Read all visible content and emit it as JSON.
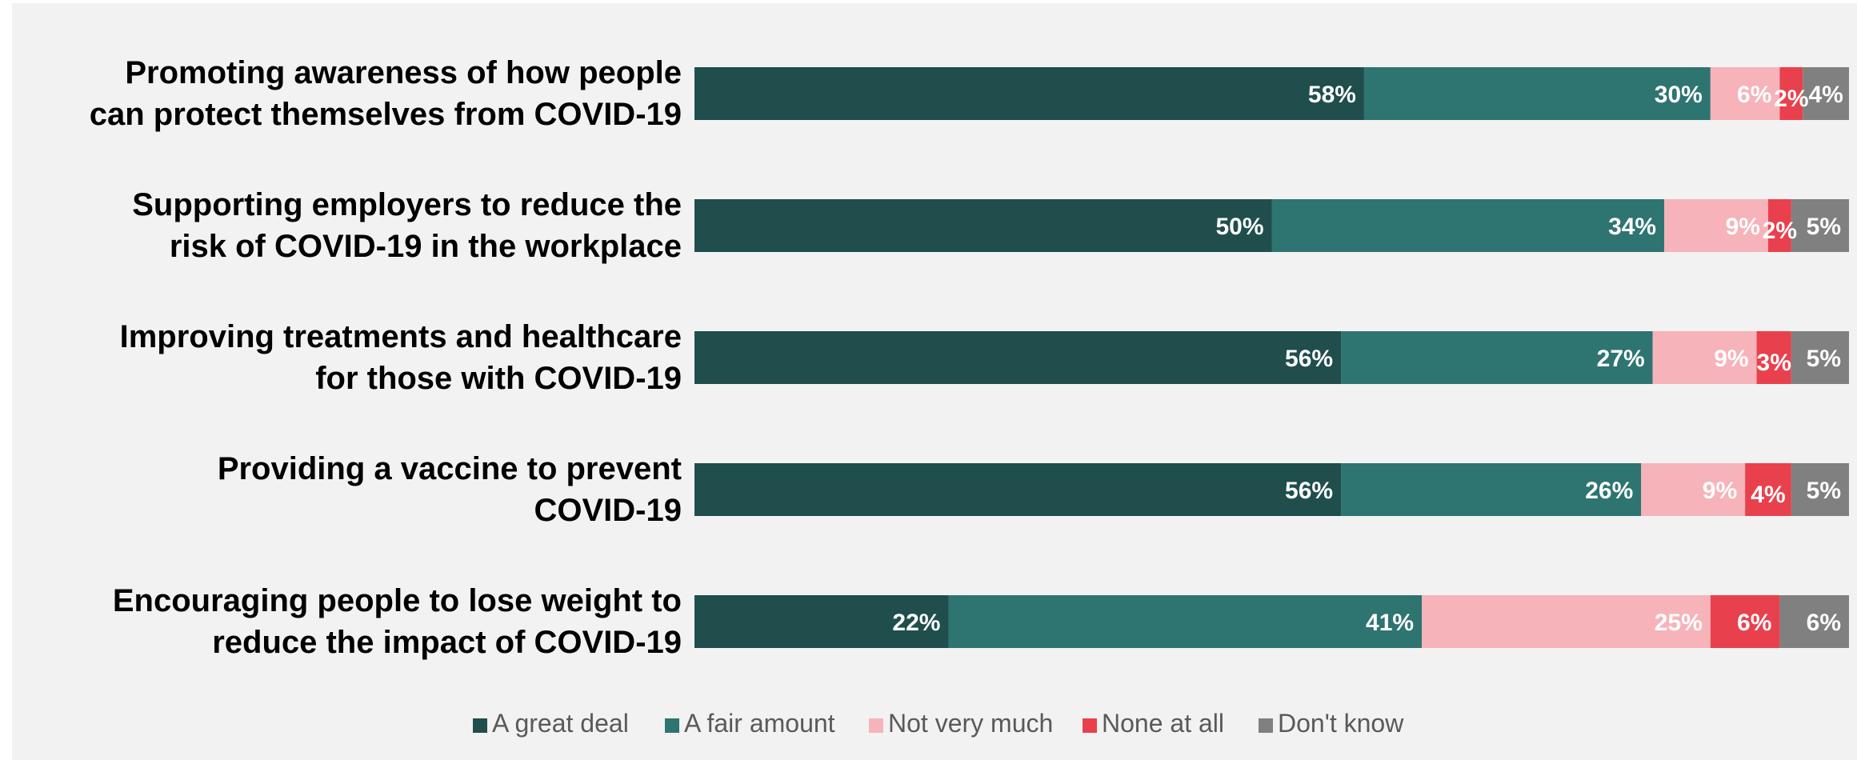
{
  "chart_data": {
    "type": "bar",
    "orientation": "horizontal",
    "stacked": true,
    "categories": [
      [
        "Promoting awareness of how people",
        "can protect themselves from COVID-19"
      ],
      [
        "Supporting employers to reduce the",
        "risk of COVID-19 in the workplace"
      ],
      [
        "Improving treatments and healthcare",
        "for those with COVID-19"
      ],
      [
        "Providing a vaccine to prevent",
        "COVID-19"
      ],
      [
        "Encouraging people to lose weight to",
        "reduce the impact of COVID-19"
      ]
    ],
    "series": [
      {
        "name": "A great deal",
        "color": "#1f4e4c",
        "values": [
          58,
          50,
          56,
          56,
          22
        ],
        "labels": [
          "58%",
          "50%",
          "56%",
          "56%",
          "22%"
        ]
      },
      {
        "name": "A fair amount",
        "color": "#2e7471",
        "values": [
          30,
          34,
          27,
          26,
          41
        ],
        "labels": [
          "30%",
          "34%",
          "27%",
          "26%",
          "41%"
        ]
      },
      {
        "name": "Not very much",
        "color": "#f6b3b9",
        "values": [
          6,
          9,
          9,
          9,
          25
        ],
        "labels": [
          "6%",
          "9%",
          "9%",
          "9%",
          "25%"
        ]
      },
      {
        "name": "None at all",
        "color": "#e8414d",
        "values": [
          2,
          2,
          3,
          4,
          6
        ],
        "labels": [
          "2%",
          "2%",
          "3%",
          "4%",
          "6%"
        ]
      },
      {
        "name": "Don't know",
        "color": "#808080",
        "values": [
          4,
          5,
          5,
          5,
          6
        ],
        "labels": [
          "4%",
          "5%",
          "5%",
          "5%",
          "6%"
        ]
      }
    ],
    "xlim": [
      0,
      100
    ],
    "grid": false,
    "legend_position": "bottom",
    "data_labels": "inside-end"
  }
}
